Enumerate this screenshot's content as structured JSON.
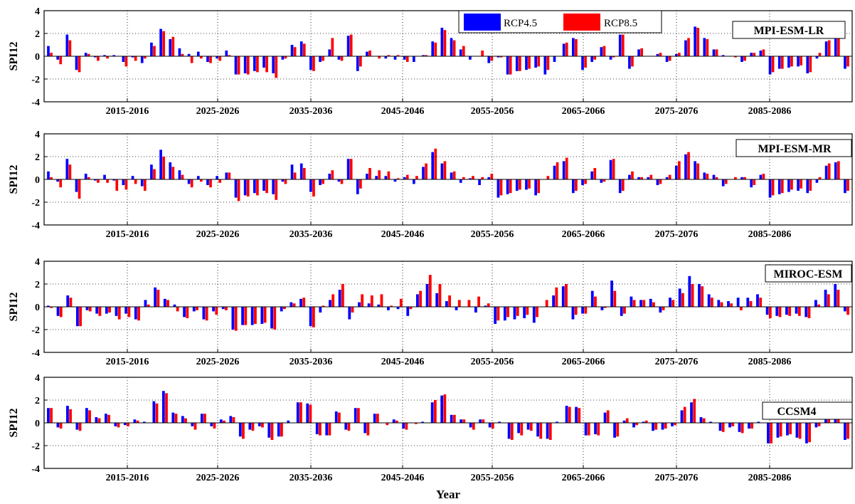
{
  "figure": {
    "xlabel": "Year"
  },
  "colors": {
    "rcp45": "#0000ff",
    "rcp85": "#ff0000"
  },
  "chart_data": [
    {
      "type": "bar",
      "title": "MPI-ESM-LR",
      "ylabel": "SPI12",
      "ylim": [
        -4,
        4
      ],
      "yticks": [
        "4",
        "2",
        "0",
        "-2",
        "-4"
      ],
      "xticks": [
        "2015-2016",
        "2025-2026",
        "2035-2036",
        "2045-2046",
        "2055-2056",
        "2065-2066",
        "2075-2076",
        "2085-2086"
      ],
      "grid": true,
      "legend_position": "top-right",
      "series": [
        {
          "name": "RCP4.5",
          "values": [
            0.9,
            -0.3,
            1.9,
            -1.2,
            0.3,
            -0.1,
            0.1,
            0.1,
            -0.5,
            -0.1,
            -0.6,
            1.2,
            2.4,
            1.5,
            0.7,
            0.2,
            0.4,
            -0.5,
            -0.2,
            0.5,
            -1.6,
            -1.5,
            -1.3,
            -1.0,
            -1.5,
            -0.3,
            1.0,
            1.3,
            -1.2,
            -0.5,
            0.6,
            -0.3,
            1.8,
            -1.3,
            0.4,
            0.0,
            -0.2,
            -0.3,
            -0.3,
            -0.5,
            0.1,
            1.3,
            2.5,
            1.6,
            0.6,
            -0.3,
            0.0,
            -0.6,
            -0.1,
            -1.6,
            -1.3,
            -1.2,
            -1.0,
            -1.6,
            -0.5,
            1.1,
            1.6,
            -1.2,
            -0.5,
            0.8,
            -0.3,
            1.9,
            -1.1,
            0.6,
            0.0,
            0.2,
            -0.5,
            0.2,
            1.4,
            2.6,
            1.6,
            0.6,
            0.1,
            0.0,
            -0.5,
            0.3,
            0.5,
            -1.6,
            -1.1,
            -1.0,
            -0.9,
            -1.5,
            -0.2,
            1.3,
            1.7,
            -1.1
          ]
        },
        {
          "name": "RCP8.5",
          "values": [
            0.3,
            -0.7,
            1.4,
            -1.4,
            0.2,
            -0.4,
            -0.2,
            0.0,
            -0.9,
            -0.4,
            -0.2,
            0.9,
            2.2,
            1.7,
            0.2,
            -0.6,
            -0.2,
            -0.6,
            -0.4,
            0.1,
            -1.6,
            -1.6,
            -1.4,
            -1.4,
            -1.9,
            -0.2,
            0.8,
            1.1,
            -1.3,
            -0.4,
            1.6,
            -0.4,
            1.9,
            -0.9,
            0.5,
            -0.2,
            0.1,
            0.1,
            -0.5,
            0.0,
            0.1,
            1.2,
            2.3,
            1.4,
            0.9,
            0.0,
            0.5,
            -0.4,
            -0.1,
            -1.6,
            -1.3,
            -1.1,
            -0.9,
            -1.2,
            0.0,
            1.2,
            1.5,
            -1.0,
            -0.3,
            0.9,
            -0.1,
            1.9,
            -0.9,
            0.7,
            0.0,
            0.3,
            -0.4,
            0.3,
            1.6,
            2.5,
            1.5,
            0.6,
            0.0,
            -0.1,
            -0.4,
            0.3,
            0.6,
            -1.4,
            -1.1,
            -0.9,
            -0.8,
            -1.4,
            0.3,
            1.4,
            1.7,
            -0.9
          ]
        }
      ]
    },
    {
      "type": "bar",
      "title": "MPI-ESM-MR",
      "ylabel": "SPI12",
      "ylim": [
        -4,
        4
      ],
      "yticks": [
        "4",
        "2",
        "0",
        "-2",
        "-4"
      ],
      "xticks": [
        "2015-2016",
        "2025-2026",
        "2035-2036",
        "2045-2046",
        "2055-2056",
        "2065-2066",
        "2075-2076",
        "2085-2086"
      ],
      "grid": true,
      "series": [
        {
          "name": "RCP4.5",
          "values": [
            0.7,
            -0.2,
            1.8,
            -1.1,
            0.5,
            -0.1,
            0.4,
            -0.1,
            -0.5,
            0.3,
            -0.6,
            1.3,
            2.6,
            1.5,
            0.8,
            -0.4,
            0.3,
            -0.5,
            0.3,
            0.6,
            -1.6,
            -1.4,
            -1.2,
            -1.0,
            -1.3,
            -0.2,
            1.3,
            1.4,
            -1.1,
            -0.5,
            0.5,
            -0.2,
            1.8,
            -1.3,
            0.5,
            0.3,
            0.3,
            -0.2,
            0.2,
            -0.4,
            1.1,
            2.4,
            1.4,
            0.6,
            -0.3,
            0.1,
            -0.5,
            0.2,
            -1.6,
            -1.3,
            -1.0,
            -0.9,
            -1.4,
            0.0,
            1.2,
            1.6,
            -1.2,
            -0.5,
            0.7,
            -0.3,
            1.7,
            -1.2,
            0.4,
            0.2,
            0.2,
            -0.5,
            0.2,
            1.2,
            2.2,
            1.6,
            0.6,
            0.4,
            -0.6,
            0.0,
            0.2,
            -0.7,
            0.4,
            -1.6,
            -1.3,
            -1.1,
            -1.0,
            -1.2,
            -0.3,
            1.2,
            1.5,
            -1.2
          ]
        },
        {
          "name": "RCP8.5",
          "values": [
            0.2,
            -0.7,
            1.3,
            -1.7,
            0.2,
            -0.3,
            -0.3,
            -1.0,
            -0.9,
            -0.4,
            -1.0,
            0.9,
            2.0,
            1.1,
            0.4,
            -0.7,
            -0.2,
            -0.7,
            -0.3,
            0.6,
            -1.9,
            -1.5,
            -1.4,
            -1.2,
            -1.8,
            -0.4,
            0.6,
            1.0,
            -1.5,
            -0.4,
            0.8,
            -0.4,
            1.8,
            -0.8,
            1.0,
            0.8,
            0.7,
            0.1,
            0.4,
            0.3,
            1.4,
            2.7,
            1.6,
            0.7,
            0.2,
            0.3,
            0.2,
            0.5,
            -1.4,
            -1.2,
            -0.9,
            -0.8,
            -1.2,
            0.3,
            1.5,
            1.9,
            -1.0,
            -0.4,
            1.0,
            -0.2,
            1.8,
            -1.0,
            0.7,
            0.2,
            0.4,
            -0.4,
            0.4,
            1.6,
            2.4,
            1.4,
            0.5,
            0.2,
            -0.4,
            0.2,
            0.2,
            -0.5,
            0.5,
            -1.4,
            -1.2,
            -0.9,
            -0.8,
            -1.0,
            0.2,
            1.4,
            1.6,
            -1.0
          ]
        }
      ]
    },
    {
      "type": "bar",
      "title": "MIROC-ESM",
      "ylabel": "SPI12",
      "ylim": [
        -4,
        4
      ],
      "yticks": [
        "4",
        "2",
        "0",
        "-2",
        "-4"
      ],
      "xticks": [
        "2015-2016",
        "2025-2026",
        "2035-2036",
        "2045-2046",
        "2055-2056",
        "2065-2066",
        "2075-2076",
        "2085-2086"
      ],
      "grid": true,
      "series": [
        {
          "name": "RCP4.5",
          "values": [
            0.1,
            -0.8,
            1.0,
            -1.7,
            -0.3,
            -0.6,
            -0.6,
            -0.8,
            -0.6,
            -1.1,
            0.6,
            1.7,
            0.7,
            0.2,
            -0.9,
            -0.4,
            -1.1,
            -0.4,
            -0.2,
            -2.0,
            -1.6,
            -1.6,
            -1.5,
            -1.9,
            -0.4,
            0.4,
            0.7,
            -1.7,
            -0.5,
            0.6,
            1.5,
            -1.1,
            0.4,
            0.3,
            0.2,
            -0.3,
            -0.2,
            -0.8,
            1.1,
            2.0,
            1.2,
            0.5,
            -0.3,
            0.0,
            -0.5,
            0.1,
            -1.5,
            -1.2,
            -1.1,
            -1.0,
            -1.4,
            0.0,
            1.0,
            1.8,
            -1.1,
            -0.6,
            1.4,
            -0.3,
            2.3,
            -0.8,
            0.9,
            0.6,
            0.7,
            -0.5,
            0.8,
            1.6,
            2.7,
            2.0,
            1.1,
            0.6,
            0.5,
            0.8,
            0.8,
            1.1,
            -0.7,
            -0.8,
            -0.7,
            -0.6,
            -0.9,
            0.6,
            1.5,
            2.0,
            -0.4
          ]
        },
        {
          "name": "RCP8.5",
          "values": [
            -0.1,
            -0.9,
            0.8,
            -1.7,
            -0.4,
            -0.8,
            -0.5,
            -1.1,
            -0.9,
            -1.2,
            0.2,
            1.5,
            0.6,
            -0.4,
            -1.0,
            -0.3,
            -1.2,
            -0.7,
            -0.3,
            -2.1,
            -1.6,
            -1.5,
            -1.4,
            -2.0,
            -0.2,
            0.3,
            0.8,
            -1.8,
            0.1,
            1.1,
            2.0,
            -0.5,
            1.1,
            1.0,
            1.1,
            0.1,
            0.7,
            -0.2,
            1.4,
            2.8,
            2.0,
            1.0,
            0.6,
            0.6,
            0.9,
            0.3,
            -1.2,
            -0.9,
            -0.8,
            -0.7,
            -0.9,
            0.6,
            1.7,
            2.0,
            -0.7,
            -0.6,
            0.9,
            -0.1,
            1.4,
            -0.6,
            0.6,
            0.6,
            0.4,
            -0.3,
            0.6,
            1.2,
            2.0,
            1.8,
            0.8,
            0.4,
            0.3,
            -0.3,
            0.5,
            0.8,
            -1.0,
            -0.9,
            -0.8,
            -0.8,
            -1.0,
            0.2,
            1.1,
            1.5,
            -0.7
          ]
        }
      ]
    },
    {
      "type": "bar",
      "title": "CCSM4",
      "ylabel": "SPI12",
      "ylim": [
        -4,
        4
      ],
      "yticks": [
        "4",
        "2",
        "0",
        "-2",
        "-4"
      ],
      "xticks": [
        "2015-2016",
        "2025-2026",
        "2035-2036",
        "2045-2046",
        "2055-2056",
        "2065-2066",
        "2075-2076",
        "2085-2086"
      ],
      "grid": true,
      "series": [
        {
          "name": "RCP4.5",
          "values": [
            1.3,
            -0.4,
            1.5,
            -0.6,
            1.3,
            0.5,
            0.8,
            -0.3,
            -0.2,
            0.3,
            0.1,
            1.9,
            2.8,
            0.9,
            0.6,
            -0.3,
            0.8,
            -0.3,
            0.3,
            0.6,
            -1.2,
            -0.6,
            -0.3,
            -1.3,
            -1.2,
            0.2,
            1.8,
            1.7,
            -1.0,
            -1.1,
            1.0,
            -0.6,
            1.3,
            -0.9,
            0.8,
            0.0,
            0.3,
            -0.5,
            0.0,
            0.1,
            1.8,
            2.4,
            0.7,
            0.3,
            -0.4,
            0.3,
            -0.4,
            0.1,
            -1.4,
            -0.9,
            -0.6,
            -1.2,
            -1.4,
            0.1,
            1.5,
            1.4,
            -1.1,
            -1.0,
            0.9,
            -1.3,
            0.2,
            -0.4,
            0.1,
            -0.7,
            -0.6,
            -0.3,
            1.1,
            1.8,
            0.5,
            0.1,
            -0.7,
            -0.4,
            -0.8,
            -0.5,
            0.1,
            -1.8,
            -1.3,
            -1.1,
            -1.3,
            -1.8,
            -0.4,
            0.7,
            0.8,
            -1.5
          ]
        },
        {
          "name": "RCP8.5",
          "values": [
            1.3,
            -0.5,
            1.2,
            -0.7,
            1.1,
            0.4,
            0.7,
            -0.4,
            -0.3,
            0.2,
            0.0,
            1.7,
            2.6,
            0.8,
            0.4,
            -0.6,
            0.8,
            -0.5,
            0.2,
            0.5,
            -1.4,
            -0.7,
            -0.4,
            -1.5,
            -1.2,
            0.0,
            1.8,
            1.6,
            -1.1,
            -1.1,
            0.9,
            -0.7,
            1.3,
            -1.1,
            0.8,
            -0.2,
            0.2,
            -0.6,
            -0.1,
            0.0,
            2.0,
            2.5,
            0.7,
            0.3,
            -0.6,
            0.3,
            -0.5,
            0.0,
            -1.5,
            -1.1,
            -0.7,
            -1.4,
            -1.5,
            0.0,
            1.4,
            1.3,
            -1.1,
            -1.1,
            1.1,
            -1.2,
            0.4,
            -0.2,
            0.2,
            -0.6,
            -0.5,
            -0.2,
            1.4,
            2.1,
            0.4,
            0.0,
            -0.8,
            -0.3,
            -0.9,
            -0.5,
            0.0,
            -1.8,
            -1.2,
            -1.0,
            -1.4,
            -1.7,
            -0.3,
            1.1,
            0.9,
            -1.4
          ]
        }
      ]
    }
  ]
}
